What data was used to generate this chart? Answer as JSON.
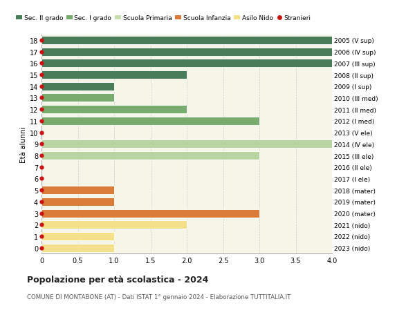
{
  "ages": [
    18,
    17,
    16,
    15,
    14,
    13,
    12,
    11,
    10,
    9,
    8,
    7,
    6,
    5,
    4,
    3,
    2,
    1,
    0
  ],
  "values": [
    4.0,
    4.0,
    4.0,
    2.0,
    1.0,
    1.0,
    2.0,
    3.0,
    0.0,
    4.0,
    3.0,
    0.0,
    0.0,
    1.0,
    1.0,
    3.0,
    2.0,
    1.0,
    1.0
  ],
  "bar_colors": [
    "#4a7c59",
    "#4a7c59",
    "#4a7c59",
    "#4a7c59",
    "#4a7c59",
    "#7aab6e",
    "#7aab6e",
    "#7aab6e",
    "#b8d4a0",
    "#b8d4a0",
    "#b8d4a0",
    "#b8d4a0",
    "#b8d4a0",
    "#d97c3a",
    "#d97c3a",
    "#d97c3a",
    "#f5e08a",
    "#f5e08a",
    "#f5e08a"
  ],
  "right_labels": [
    "2005 (V sup)",
    "2006 (IV sup)",
    "2007 (III sup)",
    "2008 (II sup)",
    "2009 (I sup)",
    "2010 (III med)",
    "2011 (II med)",
    "2012 (I med)",
    "2013 (V ele)",
    "2014 (IV ele)",
    "2015 (III ele)",
    "2016 (II ele)",
    "2017 (I ele)",
    "2018 (mater)",
    "2019 (mater)",
    "2020 (mater)",
    "2021 (nido)",
    "2022 (nido)",
    "2023 (nido)"
  ],
  "legend_labels": [
    "Sec. II grado",
    "Sec. I grado",
    "Scuola Primaria",
    "Scuola Infanzia",
    "Asilo Nido",
    "Stranieri"
  ],
  "legend_colors": [
    "#4a7c59",
    "#7aab6e",
    "#c8ddb0",
    "#d97c3a",
    "#f5e08a",
    "#cc1111"
  ],
  "ylabel_left": "Età alunni",
  "xlim": [
    0,
    4.0
  ],
  "xticks": [
    0,
    0.5,
    1.0,
    1.5,
    2.0,
    2.5,
    3.0,
    3.5,
    4.0
  ],
  "xtick_labels": [
    "0",
    "0.5",
    "1.0",
    "1.5",
    "2.0",
    "2.5",
    "3.0",
    "3.5",
    "4.0"
  ],
  "title": "Popolazione per età scolastica - 2024",
  "subtitle": "COMUNE DI MONTABONE (AT) - Dati ISTAT 1° gennaio 2024 - Elaborazione TUTTITALIA.IT",
  "dot_color": "#cc1111",
  "bg_axes": "#f5f5e8",
  "bg_fig": "#ffffff",
  "bar_height": 0.72,
  "grid_color": "#cccccc"
}
